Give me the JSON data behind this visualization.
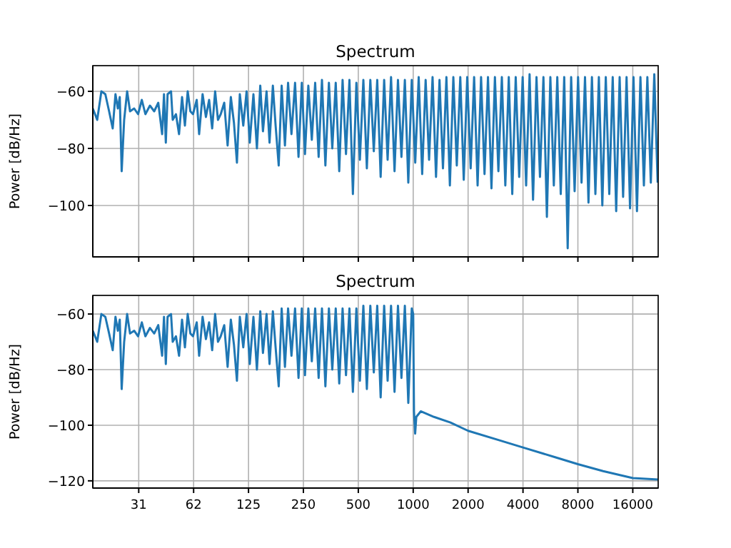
{
  "chart_data": [
    {
      "type": "line",
      "title": "Spectrum",
      "ylabel": "Power [dB/Hz]",
      "color": "#1f77b4",
      "log": "x",
      "grid": true,
      "tick_labels": "y",
      "xlim": [
        17.5,
        22050
      ],
      "ylim": [
        -118,
        -51
      ],
      "xticks": [
        {
          "value": 31.25,
          "label": null
        },
        {
          "value": 62.5,
          "label": null
        },
        {
          "value": 125,
          "label": null
        },
        {
          "value": 250,
          "label": null
        },
        {
          "value": 500,
          "label": null
        },
        {
          "value": 1000,
          "label": null
        },
        {
          "value": 2000,
          "label": null
        },
        {
          "value": 4000,
          "label": null
        },
        {
          "value": 8000,
          "label": null
        },
        {
          "value": 16000,
          "label": null
        }
      ],
      "yticks": [
        -100,
        -80,
        -60
      ],
      "x": [
        17.5,
        18.5,
        19.5,
        20.5,
        21.5,
        22.5,
        23.3,
        24,
        24.6,
        25.2,
        26,
        27,
        28,
        29.5,
        31,
        32.5,
        34,
        36,
        38,
        40,
        42,
        43,
        44,
        45,
        47,
        48,
        50,
        52,
        54,
        56,
        58,
        60,
        62,
        65,
        67,
        70,
        73,
        76,
        79,
        82,
        85,
        88,
        92,
        96,
        100,
        104,
        108,
        112,
        117,
        122,
        127,
        133,
        139,
        145,
        150,
        157,
        163,
        170,
        176,
        183,
        190,
        198,
        206,
        215,
        225,
        235,
        245,
        255,
        266,
        278,
        290,
        303,
        316,
        330,
        345,
        360,
        376,
        393,
        410,
        428,
        447,
        467,
        488,
        510,
        533,
        557,
        582,
        608,
        635,
        663,
        693,
        724,
        756,
        790,
        825,
        862,
        900,
        940,
        982,
        1026,
        1072,
        1120,
        1170,
        1222,
        1277,
        1334,
        1394,
        1456,
        1521,
        1589,
        1660,
        1734,
        1812,
        1893,
        1978,
        2066,
        2158,
        2255,
        2356,
        2461,
        2571,
        2686,
        2806,
        2932,
        3063,
        3200,
        3343,
        3493,
        3649,
        3812,
        3983,
        4161,
        4347,
        4541,
        4744,
        4956,
        5178,
        5409,
        5651,
        5904,
        6168,
        6444,
        6732,
        7033,
        7347,
        7676,
        8019,
        8378,
        8752,
        9144,
        9552,
        9979,
        10426,
        10892,
        11379,
        11888,
        12419,
        12974,
        13554,
        14160,
        14793,
        15455,
        16146,
        16868,
        17622,
        18410,
        19233,
        20093,
        20991,
        21900
      ],
      "values": [
        -66,
        -70,
        -60,
        -61,
        -67,
        -73,
        -61,
        -66,
        -62,
        -88,
        -70,
        -60,
        -67,
        -66,
        -68,
        -63,
        -68,
        -65,
        -67,
        -64,
        -75,
        -61,
        -78,
        -61,
        -60,
        -70,
        -68,
        -75,
        -62,
        -72,
        -60,
        -67,
        -68,
        -63,
        -75,
        -61,
        -69,
        -63,
        -73,
        -60,
        -70,
        -68,
        -64,
        -79,
        -62,
        -71,
        -85,
        -61,
        -72,
        -60,
        -78,
        -61,
        -80,
        -58,
        -74,
        -60,
        -78,
        -58,
        -72,
        -86,
        -58,
        -79,
        -57,
        -75,
        -57,
        -83,
        -57,
        -82,
        -58,
        -77,
        -57,
        -83,
        -56,
        -86,
        -57,
        -80,
        -57,
        -88,
        -56,
        -82,
        -56,
        -96,
        -57,
        -84,
        -56,
        -87,
        -56,
        -81,
        -56,
        -90,
        -56,
        -84,
        -55,
        -88,
        -56,
        -83,
        -56,
        -92,
        -56,
        -85,
        -55,
        -89,
        -56,
        -84,
        -55,
        -90,
        -56,
        -87,
        -55,
        -93,
        -55,
        -86,
        -55,
        -91,
        -55,
        -87,
        -55,
        -93,
        -55,
        -89,
        -55,
        -94,
        -55,
        -88,
        -55,
        -93,
        -55,
        -96,
        -55,
        -90,
        -55,
        -93,
        -54,
        -98,
        -55,
        -90,
        -55,
        -104,
        -55,
        -93,
        -55,
        -96,
        -55,
        -115,
        -55,
        -95,
        -55,
        -92,
        -55,
        -99,
        -55,
        -96,
        -55,
        -100,
        -55,
        -96,
        -55,
        -102,
        -55,
        -97,
        -55,
        -101,
        -55,
        -102,
        -55,
        -93,
        -55,
        -92,
        -54,
        -92
      ]
    },
    {
      "type": "line",
      "title": "Spectrum",
      "ylabel": "Power [dB/Hz]",
      "color": "#1f77b4",
      "log": "x",
      "grid": true,
      "xlim": [
        17.5,
        22050
      ],
      "ylim": [
        -122.6,
        -53.3
      ],
      "xticks": [
        {
          "value": 31.25,
          "label": "31"
        },
        {
          "value": 62.5,
          "label": "62"
        },
        125,
        250,
        500,
        1000,
        2000,
        4000,
        8000,
        16000
      ],
      "yticks": [
        -120,
        -100,
        -80,
        -60
      ],
      "x": [
        17.5,
        18.5,
        19.5,
        20.5,
        21.5,
        22.5,
        23.3,
        24,
        24.6,
        25.2,
        26,
        27,
        28,
        29.5,
        31,
        32.5,
        34,
        36,
        38,
        40,
        42,
        43,
        44,
        45,
        47,
        48,
        50,
        52,
        54,
        56,
        58,
        60,
        62,
        65,
        67,
        70,
        73,
        76,
        79,
        82,
        85,
        88,
        92,
        96,
        100,
        104,
        108,
        112,
        117,
        122,
        127,
        133,
        139,
        145,
        150,
        157,
        163,
        170,
        176,
        183,
        190,
        198,
        206,
        215,
        225,
        235,
        245,
        255,
        266,
        278,
        290,
        303,
        316,
        330,
        345,
        360,
        376,
        393,
        410,
        428,
        447,
        467,
        488,
        510,
        533,
        557,
        582,
        608,
        635,
        663,
        693,
        724,
        756,
        790,
        825,
        862,
        900,
        940,
        982,
        1000,
        1010,
        1025,
        1040,
        1100,
        1300,
        1600,
        2000,
        3000,
        4000,
        6000,
        8000,
        11000,
        16000,
        22000
      ],
      "values": [
        -66,
        -70,
        -60,
        -61,
        -67,
        -73,
        -61,
        -66,
        -62,
        -87,
        -70,
        -60,
        -67,
        -66,
        -68,
        -63,
        -68,
        -65,
        -67,
        -64,
        -75,
        -61,
        -78,
        -61,
        -60,
        -70,
        -68,
        -75,
        -62,
        -72,
        -60,
        -67,
        -68,
        -63,
        -75,
        -61,
        -69,
        -63,
        -73,
        -60,
        -70,
        -68,
        -64,
        -79,
        -62,
        -71,
        -84,
        -61,
        -72,
        -60,
        -78,
        -61,
        -80,
        -59,
        -74,
        -60,
        -78,
        -59,
        -72,
        -86,
        -58,
        -79,
        -58,
        -75,
        -58,
        -83,
        -58,
        -82,
        -58,
        -77,
        -58,
        -83,
        -58,
        -86,
        -58,
        -80,
        -58,
        -85,
        -58,
        -82,
        -58,
        -88,
        -58,
        -84,
        -57,
        -87,
        -57,
        -81,
        -57,
        -90,
        -57,
        -84,
        -57,
        -88,
        -57,
        -83,
        -57,
        -92,
        -58,
        -60,
        -95,
        -103,
        -97,
        -95,
        -97,
        -99,
        -102,
        -105.5,
        -108,
        -111.5,
        -114,
        -116.5,
        -119,
        -119.5
      ]
    }
  ]
}
